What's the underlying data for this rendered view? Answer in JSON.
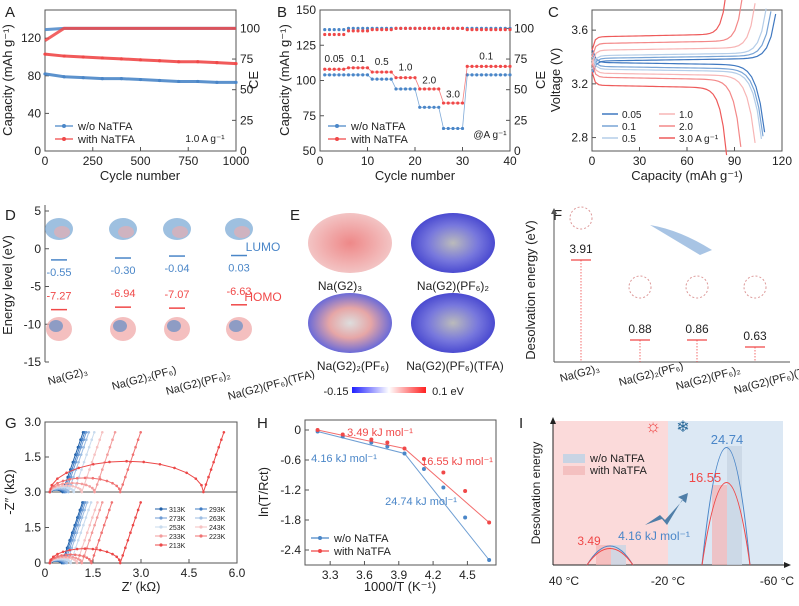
{
  "colors": {
    "blue": "#4a86c8",
    "red": "#f04848",
    "lightred": "#f7c6c6",
    "lightblue": "#cfe0f0",
    "axis": "#555555"
  },
  "panels": {
    "A": "A",
    "B": "B",
    "C": "C",
    "D": "D",
    "E": "E",
    "F": "F",
    "G": "G",
    "H": "H",
    "I": "I"
  },
  "chart_data": [
    {
      "id": "A",
      "type": "line",
      "xlabel": "Cycle number",
      "ylabel": "Capacity (mAh g⁻¹)",
      "y2label": "CE",
      "xlim": [
        0,
        1000
      ],
      "ylim": [
        0,
        150
      ],
      "y2lim": [
        0,
        115
      ],
      "xticks": [
        0,
        250,
        500,
        750,
        1000
      ],
      "yticks": [
        0,
        40,
        80,
        120
      ],
      "y2ticks": [
        0,
        25,
        50,
        75,
        100
      ],
      "annotation": "1.0 A g⁻¹",
      "x": [
        0,
        100,
        200,
        300,
        400,
        500,
        600,
        700,
        800,
        900,
        1000
      ],
      "series": [
        {
          "name": "w/o NaTFA",
          "color": "blue",
          "capacity": [
            82,
            79,
            78,
            77,
            77,
            76,
            75,
            74,
            74,
            73,
            73
          ],
          "ce": [
            99,
            100,
            100,
            100,
            100,
            100,
            100,
            100,
            100,
            100,
            100
          ]
        },
        {
          "name": "with NaTFA",
          "color": "red",
          "capacity": [
            103,
            101,
            100,
            99,
            98,
            97,
            96,
            95,
            95,
            94,
            93
          ],
          "ce": [
            90,
            100,
            100,
            100,
            100,
            100,
            100,
            100,
            100,
            100,
            100
          ]
        }
      ]
    },
    {
      "id": "B",
      "type": "scatter",
      "xlabel": "Cycle number",
      "ylabel": "Capacity (mAh g⁻¹)",
      "y2label": "CE",
      "xlim": [
        0,
        40
      ],
      "ylim": [
        50,
        150
      ],
      "y2lim": [
        0,
        115
      ],
      "xticks": [
        0,
        10,
        20,
        30,
        40
      ],
      "yticks": [
        50,
        75,
        100,
        125,
        150
      ],
      "y2ticks": [
        0,
        25,
        50,
        75,
        100
      ],
      "annotation": "@A g⁻¹",
      "rate_labels": [
        {
          "label": "0.05",
          "cycle": 3,
          "capacity": 113
        },
        {
          "label": "0.1",
          "cycle": 8,
          "capacity": 113
        },
        {
          "label": "0.5",
          "cycle": 13,
          "capacity": 111
        },
        {
          "label": "1.0",
          "cycle": 18,
          "capacity": 107
        },
        {
          "label": "2.0",
          "cycle": 23,
          "capacity": 98
        },
        {
          "label": "3.0",
          "cycle": 28,
          "capacity": 88
        },
        {
          "label": "0.1",
          "cycle": 35,
          "capacity": 115
        }
      ],
      "segments": [
        [
          1,
          5
        ],
        [
          6,
          10
        ],
        [
          11,
          15
        ],
        [
          16,
          20
        ],
        [
          21,
          25
        ],
        [
          26,
          30
        ],
        [
          31,
          40
        ]
      ],
      "series": [
        {
          "name": "w/o NaTFA",
          "color": "blue",
          "capacity": [
            104,
            104,
            101,
            94,
            81,
            66,
            104
          ],
          "ce": [
            99,
            100,
            100,
            100,
            100,
            100,
            100
          ]
        },
        {
          "name": "with NaTFA",
          "color": "red",
          "capacity": [
            108,
            109,
            106,
            102,
            94,
            84,
            110
          ],
          "ce": [
            95,
            98,
            99,
            100,
            100,
            100,
            99
          ]
        }
      ]
    },
    {
      "id": "C",
      "type": "line",
      "xlabel": "Capacity (mAh g⁻¹)",
      "ylabel": "Voltage (V)",
      "xlim": [
        0,
        120
      ],
      "ylim": [
        2.7,
        3.75
      ],
      "xticks": [
        0,
        30,
        60,
        90,
        120
      ],
      "yticks": [
        2.8,
        3.2,
        3.6
      ],
      "series": [
        {
          "name": "0.05",
          "color": "#3f78c0",
          "charge_plateau": 3.37,
          "discharge_plateau": 3.36,
          "charge_capacity": 116,
          "discharge_capacity": 109
        },
        {
          "name": "0.1",
          "color": "#78a4d6",
          "charge_plateau": 3.39,
          "discharge_plateau": 3.33,
          "charge_capacity": 113,
          "discharge_capacity": 108
        },
        {
          "name": "0.5",
          "color": "#b4cde8",
          "charge_plateau": 3.41,
          "discharge_plateau": 3.31,
          "charge_capacity": 110,
          "discharge_capacity": 107
        },
        {
          "name": "1.0",
          "color": "#f7b5b5",
          "charge_plateau": 3.45,
          "discharge_plateau": 3.28,
          "charge_capacity": 103,
          "discharge_capacity": 103
        },
        {
          "name": "2.0",
          "color": "#f38888",
          "charge_plateau": 3.5,
          "discharge_plateau": 3.25,
          "charge_capacity": 95,
          "discharge_capacity": 94
        },
        {
          "name": "3.0 A g⁻¹",
          "color": "#ee5a5a",
          "charge_plateau": 3.55,
          "discharge_plateau": 3.19,
          "charge_capacity": 85,
          "discharge_capacity": 85
        }
      ]
    },
    {
      "id": "D",
      "type": "scatter",
      "ylabel": "Energy level (eV)",
      "ylim": [
        -15,
        5
      ],
      "yticks": [
        -15,
        -10,
        -5,
        0,
        5
      ],
      "categories": [
        "Na(G2)₃",
        "Na(G2)₂(PF₆)",
        "Na(G2)(PF₆)₂",
        "Na(G2)(PF₆)(TFA)"
      ],
      "lumo_label": "LUMO",
      "homo_label": "HOMO",
      "lumo": [
        -0.55,
        -0.3,
        -0.04,
        0.03
      ],
      "lumo_text": [
        "-0.55",
        "-0.30",
        "-0.04",
        "0.03"
      ],
      "homo": [
        -7.27,
        -6.94,
        -7.07,
        -6.63
      ],
      "homo_text": [
        "-7.27",
        "-6.94",
        "-7.07",
        "-6.63"
      ]
    },
    {
      "id": "E",
      "type": "heatmap",
      "labels": [
        "Na(G2)₃",
        "Na(G2)(PF₆)₂",
        "Na(G2)₂(PF₆)",
        "Na(G2)(PF₆)(TFA)"
      ],
      "colorbar_min": "-0.15",
      "colorbar_max": "0.1 eV"
    },
    {
      "id": "F",
      "type": "bar",
      "ylabel": "Desolvation energy (eV)",
      "categories": [
        "Na(G2)₃",
        "Na(G2)₂(PF₆)",
        "Na(G2)(PF₆)₂",
        "Na(G2)(PF₆)(TFA)"
      ],
      "values": [
        3.91,
        0.88,
        0.86,
        0.63
      ],
      "value_text": [
        "3.91",
        "0.88",
        "0.86",
        "0.63"
      ]
    },
    {
      "id": "G",
      "type": "line",
      "xlabel": "Z′ (kΩ)",
      "ylabel": "-Z″ (kΩ)",
      "xlim": [
        0,
        6
      ],
      "ylim": [
        0,
        3
      ],
      "xticks": [
        "0",
        "1.5",
        "3.0",
        "4.5",
        "6.0"
      ],
      "yticks_top": [
        "1.5",
        "3.0"
      ],
      "yticks_bottom": [
        "0",
        "1.5",
        "3.0"
      ],
      "series": [
        {
          "name": "313K",
          "color": "#1f5fa8",
          "rct_top": 0.4,
          "rct_bottom": 0.38
        },
        {
          "name": "293K",
          "color": "#3f7cc4",
          "rct_top": 0.45,
          "rct_bottom": 0.42
        },
        {
          "name": "273K",
          "color": "#6d9bd4",
          "rct_top": 0.5,
          "rct_bottom": 0.47
        },
        {
          "name": "263K",
          "color": "#9cbde3",
          "rct_top": 0.58,
          "rct_bottom": 0.53
        },
        {
          "name": "253K",
          "color": "#c8dbee",
          "rct_top": 0.75,
          "rct_bottom": 0.65
        },
        {
          "name": "243K",
          "color": "#f6c2c2",
          "rct_top": 1.0,
          "rct_bottom": 0.85
        },
        {
          "name": "233K",
          "color": "#f39c9c",
          "rct_top": 1.4,
          "rct_bottom": 1.0
        },
        {
          "name": "223K",
          "color": "#f07272",
          "rct_top": 2.2,
          "rct_bottom": 1.3
        },
        {
          "name": "213K",
          "color": "#ec4848",
          "rct_top": 4.8,
          "rct_bottom": 2.2
        }
      ]
    },
    {
      "id": "H",
      "type": "scatter",
      "xlabel": "1000/T (K⁻¹)",
      "ylabel": "ln(T/Rct)",
      "xlim": [
        3.08,
        4.75
      ],
      "ylim": [
        -2.7,
        0.2
      ],
      "xticks": [
        3.3,
        3.6,
        3.9,
        4.2,
        4.5
      ],
      "yticks": [
        0,
        -0.6,
        -1.2,
        -1.8,
        -2.4
      ],
      "x": [
        3.19,
        3.41,
        3.66,
        3.8,
        3.95,
        4.12,
        4.29,
        4.48,
        4.69
      ],
      "series": [
        {
          "name": "w/o NaTFA",
          "color": "blue",
          "y": [
            -0.03,
            -0.13,
            -0.25,
            -0.33,
            -0.47,
            -0.78,
            -1.15,
            -1.75,
            -2.6
          ],
          "fit_low": "4.16 kJ mol⁻¹",
          "fit_high": "24.74 kJ mol⁻¹"
        },
        {
          "name": "with NaTFA",
          "color": "red",
          "y": [
            0.0,
            -0.09,
            -0.19,
            -0.25,
            -0.37,
            -0.58,
            -0.85,
            -1.22,
            -1.85
          ],
          "fit_low": "3.49 kJ mol⁻¹",
          "fit_high": "16.55 kJ mol⁻¹"
        }
      ]
    },
    {
      "id": "I",
      "type": "area",
      "ylabel": "Desolvation energy",
      "xticks": [
        "40 °C",
        "-20 °C",
        "-60 °C"
      ],
      "series": [
        {
          "name": "w/o NaTFA",
          "color": "blue",
          "low_T": 4.16,
          "high": 24.74,
          "low_label": "4.16 kJ mol⁻¹",
          "high_label": "24.74"
        },
        {
          "name": "with NaTFA",
          "color": "red",
          "low_T": 3.49,
          "high": 16.55,
          "low_label": "3.49",
          "high_label": "16.55"
        }
      ]
    }
  ]
}
